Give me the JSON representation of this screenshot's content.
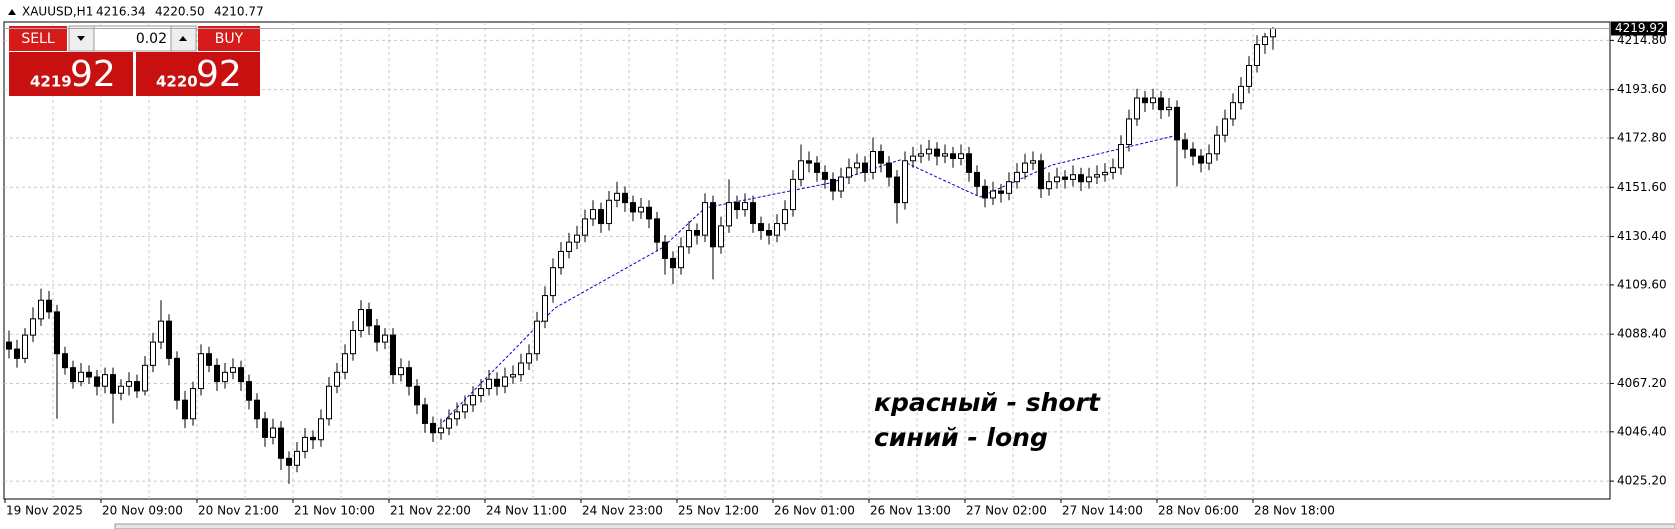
{
  "chart_data": {
    "type": "candlestick",
    "symbol": "XAUUSD,H1",
    "last_value_labels": [
      "4216.34",
      "4220.50",
      "4210.77",
      "4219.92"
    ],
    "trade_panel": {
      "sell": "SELL",
      "buy": "BUY",
      "lot": "0.02",
      "bid_main": "4219",
      "bid_frac": "92",
      "ask_main": "4220",
      "ask_frac": "92"
    },
    "annotations": [
      "красный - short",
      "синий - long"
    ],
    "categories": [
      "19 Nov 2025",
      null,
      null,
      null,
      null,
      null,
      null,
      null,
      null,
      null,
      null,
      null,
      "20 Nov 09:00",
      null,
      null,
      null,
      null,
      null,
      null,
      null,
      null,
      null,
      null,
      null,
      "20 Nov 21:00",
      null,
      null,
      null,
      null,
      null,
      null,
      null,
      null,
      null,
      null,
      null,
      "21 Nov 10:00",
      null,
      null,
      null,
      null,
      null,
      null,
      null,
      null,
      null,
      null,
      null,
      "21 Nov 22:00",
      null,
      null,
      null,
      null,
      null,
      null,
      null,
      null,
      null,
      null,
      null,
      "24 Nov 11:00",
      null,
      null,
      null,
      null,
      null,
      null,
      null,
      null,
      null,
      null,
      null,
      "24 Nov 23:00",
      null,
      null,
      null,
      null,
      null,
      null,
      null,
      null,
      null,
      null,
      null,
      "25 Nov 12:00",
      null,
      null,
      null,
      null,
      null,
      null,
      null,
      null,
      null,
      null,
      null,
      "26 Nov 01:00",
      null,
      null,
      null,
      null,
      null,
      null,
      null,
      null,
      null,
      null,
      null,
      "26 Nov 13:00",
      null,
      null,
      null,
      null,
      null,
      null,
      null,
      null,
      null,
      null,
      null,
      "27 Nov 02:00",
      null,
      null,
      null,
      null,
      null,
      null,
      null,
      null,
      null,
      null,
      null,
      "27 Nov 14:00",
      null,
      null,
      null,
      null,
      null,
      null,
      null,
      null,
      null,
      null,
      null,
      "28 Nov 06:00",
      null,
      null,
      null,
      null,
      null,
      null,
      null,
      null,
      null,
      null,
      null,
      "28 Nov 18:00",
      null,
      null
    ],
    "ohlc": [
      [
        4085,
        4090,
        4078,
        4082
      ],
      [
        4082,
        4086,
        4074,
        4078
      ],
      [
        4078,
        4091,
        4076,
        4088
      ],
      [
        4088,
        4100,
        4085,
        4095
      ],
      [
        4095,
        4108,
        4092,
        4103
      ],
      [
        4103,
        4107,
        4095,
        4098
      ],
      [
        4098,
        4101,
        4052,
        4080
      ],
      [
        4080,
        4083,
        4071,
        4074
      ],
      [
        4074,
        4077,
        4065,
        4068
      ],
      [
        4068,
        4076,
        4066,
        4072
      ],
      [
        4072,
        4075,
        4067,
        4070
      ],
      [
        4070,
        4073,
        4062,
        4066
      ],
      [
        4066,
        4074,
        4063,
        4071
      ],
      [
        4071,
        4074,
        4050,
        4063
      ],
      [
        4063,
        4069,
        4060,
        4066
      ],
      [
        4066,
        4072,
        4062,
        4068
      ],
      [
        4068,
        4071,
        4061,
        4064
      ],
      [
        4064,
        4079,
        4062,
        4075
      ],
      [
        4075,
        4089,
        4072,
        4085
      ],
      [
        4085,
        4103,
        4082,
        4094
      ],
      [
        4094,
        4097,
        4075,
        4078
      ],
      [
        4078,
        4081,
        4056,
        4060
      ],
      [
        4060,
        4064,
        4048,
        4052
      ],
      [
        4052,
        4068,
        4049,
        4065
      ],
      [
        4065,
        4084,
        4062,
        4080
      ],
      [
        4080,
        4083,
        4072,
        4075
      ],
      [
        4075,
        4078,
        4064,
        4068
      ],
      [
        4068,
        4076,
        4065,
        4072
      ],
      [
        4072,
        4078,
        4069,
        4074
      ],
      [
        4074,
        4077,
        4064,
        4068
      ],
      [
        4068,
        4071,
        4056,
        4060
      ],
      [
        4060,
        4063,
        4048,
        4052
      ],
      [
        4052,
        4055,
        4040,
        4044
      ],
      [
        4044,
        4052,
        4041,
        4048
      ],
      [
        4048,
        4051,
        4030,
        4035
      ],
      [
        4035,
        4038,
        4024,
        4032
      ],
      [
        4032,
        4042,
        4029,
        4038
      ],
      [
        4038,
        4048,
        4035,
        4044
      ],
      [
        4044,
        4047,
        4039,
        4043
      ],
      [
        4043,
        4056,
        4040,
        4052
      ],
      [
        4052,
        4070,
        4049,
        4066
      ],
      [
        4066,
        4076,
        4063,
        4072
      ],
      [
        4072,
        4084,
        4069,
        4080
      ],
      [
        4080,
        4094,
        4077,
        4090
      ],
      [
        4090,
        4103,
        4087,
        4099
      ],
      [
        4099,
        4102,
        4088,
        4092
      ],
      [
        4092,
        4095,
        4081,
        4085
      ],
      [
        4085,
        4091,
        4082,
        4088
      ],
      [
        4088,
        4091,
        4067,
        4071
      ],
      [
        4071,
        4078,
        4068,
        4074
      ],
      [
        4074,
        4077,
        4062,
        4066
      ],
      [
        4066,
        4069,
        4054,
        4058
      ],
      [
        4058,
        4061,
        4046,
        4050
      ],
      [
        4050,
        4053,
        4042,
        4046
      ],
      [
        4046,
        4052,
        4043,
        4048
      ],
      [
        4048,
        4056,
        4045,
        4052
      ],
      [
        4052,
        4059,
        4049,
        4055
      ],
      [
        4055,
        4062,
        4052,
        4058
      ],
      [
        4058,
        4066,
        4055,
        4062
      ],
      [
        4062,
        4069,
        4059,
        4065
      ],
      [
        4065,
        4073,
        4062,
        4069
      ],
      [
        4069,
        4072,
        4062,
        4066
      ],
      [
        4066,
        4074,
        4063,
        4070
      ],
      [
        4070,
        4075,
        4067,
        4071
      ],
      [
        4071,
        4080,
        4068,
        4076
      ],
      [
        4076,
        4084,
        4073,
        4080
      ],
      [
        4080,
        4098,
        4077,
        4094
      ],
      [
        4094,
        4109,
        4091,
        4105
      ],
      [
        4105,
        4121,
        4102,
        4117
      ],
      [
        4117,
        4128,
        4114,
        4124
      ],
      [
        4124,
        4132,
        4121,
        4128
      ],
      [
        4128,
        4135,
        4125,
        4131
      ],
      [
        4131,
        4142,
        4128,
        4138
      ],
      [
        4138,
        4146,
        4135,
        4142
      ],
      [
        4142,
        4145,
        4132,
        4136
      ],
      [
        4136,
        4150,
        4133,
        4146
      ],
      [
        4146,
        4154,
        4143,
        4149
      ],
      [
        4149,
        4152,
        4141,
        4145
      ],
      [
        4145,
        4148,
        4137,
        4141
      ],
      [
        4141,
        4147,
        4138,
        4143
      ],
      [
        4143,
        4146,
        4134,
        4138
      ],
      [
        4138,
        4141,
        4124,
        4128
      ],
      [
        4128,
        4131,
        4114,
        4121
      ],
      [
        4121,
        4124,
        4110,
        4117
      ],
      [
        4117,
        4130,
        4114,
        4126
      ],
      [
        4126,
        4137,
        4123,
        4133
      ],
      [
        4133,
        4136,
        4127,
        4131
      ],
      [
        4131,
        4149,
        4128,
        4145
      ],
      [
        4145,
        4148,
        4112,
        4126
      ],
      [
        4126,
        4139,
        4123,
        4135
      ],
      [
        4135,
        4155,
        4132,
        4145
      ],
      [
        4145,
        4148,
        4138,
        4142
      ],
      [
        4142,
        4149,
        4139,
        4145
      ],
      [
        4145,
        4148,
        4132,
        4136
      ],
      [
        4136,
        4139,
        4129,
        4133
      ],
      [
        4133,
        4136,
        4127,
        4131
      ],
      [
        4131,
        4140,
        4128,
        4136
      ],
      [
        4136,
        4146,
        4133,
        4142
      ],
      [
        4142,
        4159,
        4139,
        4155
      ],
      [
        4155,
        4170,
        4152,
        4163
      ],
      [
        4163,
        4167,
        4158,
        4162
      ],
      [
        4162,
        4165,
        4154,
        4158
      ],
      [
        4158,
        4161,
        4151,
        4155
      ],
      [
        4155,
        4158,
        4146,
        4150
      ],
      [
        4150,
        4160,
        4147,
        4156
      ],
      [
        4156,
        4164,
        4153,
        4160
      ],
      [
        4160,
        4166,
        4157,
        4162
      ],
      [
        4162,
        4165,
        4154,
        4158
      ],
      [
        4158,
        4173,
        4155,
        4167
      ],
      [
        4167,
        4170,
        4158,
        4162
      ],
      [
        4162,
        4165,
        4152,
        4156
      ],
      [
        4156,
        4159,
        4136,
        4145
      ],
      [
        4145,
        4167,
        4142,
        4163
      ],
      [
        4163,
        4169,
        4160,
        4165
      ],
      [
        4165,
        4170,
        4162,
        4166
      ],
      [
        4166,
        4172,
        4163,
        4168
      ],
      [
        4168,
        4171,
        4161,
        4165
      ],
      [
        4165,
        4170,
        4162,
        4166
      ],
      [
        4166,
        4169,
        4160,
        4164
      ],
      [
        4164,
        4170,
        4161,
        4166
      ],
      [
        4166,
        4169,
        4154,
        4158
      ],
      [
        4158,
        4161,
        4148,
        4152
      ],
      [
        4152,
        4155,
        4143,
        4147
      ],
      [
        4147,
        4154,
        4144,
        4150
      ],
      [
        4150,
        4153,
        4145,
        4149
      ],
      [
        4149,
        4158,
        4146,
        4154
      ],
      [
        4154,
        4162,
        4151,
        4158
      ],
      [
        4158,
        4166,
        4155,
        4162
      ],
      [
        4162,
        4167,
        4159,
        4163
      ],
      [
        4163,
        4166,
        4147,
        4151
      ],
      [
        4151,
        4158,
        4148,
        4154
      ],
      [
        4154,
        4160,
        4151,
        4156
      ],
      [
        4156,
        4159,
        4151,
        4155
      ],
      [
        4155,
        4161,
        4152,
        4157
      ],
      [
        4157,
        4160,
        4150,
        4154
      ],
      [
        4154,
        4160,
        4151,
        4156
      ],
      [
        4156,
        4161,
        4153,
        4157
      ],
      [
        4157,
        4162,
        4154,
        4158
      ],
      [
        4158,
        4164,
        4155,
        4160
      ],
      [
        4160,
        4174,
        4157,
        4170
      ],
      [
        4170,
        4185,
        4167,
        4181
      ],
      [
        4181,
        4194,
        4178,
        4190
      ],
      [
        4190,
        4193,
        4184,
        4188
      ],
      [
        4188,
        4194,
        4185,
        4190
      ],
      [
        4190,
        4193,
        4181,
        4185
      ],
      [
        4185,
        4190,
        4182,
        4186
      ],
      [
        4186,
        4189,
        4152,
        4172
      ],
      [
        4172,
        4175,
        4164,
        4168
      ],
      [
        4168,
        4171,
        4161,
        4165
      ],
      [
        4165,
        4168,
        4158,
        4162
      ],
      [
        4162,
        4170,
        4159,
        4166
      ],
      [
        4166,
        4178,
        4163,
        4174
      ],
      [
        4174,
        4185,
        4171,
        4181
      ],
      [
        4181,
        4192,
        4178,
        4188
      ],
      [
        4188,
        4199,
        4185,
        4195
      ],
      [
        4195,
        4208,
        4192,
        4204
      ],
      [
        4204,
        4217,
        4201,
        4213
      ],
      [
        4213,
        4218,
        4209,
        4216.34
      ],
      [
        4216.34,
        4220.5,
        4210.77,
        4219.92
      ]
    ],
    "ylim": [
      4017.5,
      4222.7
    ],
    "yticks": [
      {
        "value": 4025.2,
        "label": "4025.20"
      },
      {
        "value": 4046.4,
        "label": "4046.40"
      },
      {
        "value": 4067.2,
        "label": "4067.20"
      },
      {
        "value": 4088.4,
        "label": "4088.40"
      },
      {
        "value": 4109.6,
        "label": "4109.60"
      },
      {
        "value": 4130.4,
        "label": "4130.40"
      },
      {
        "value": 4151.6,
        "label": "4151.60"
      },
      {
        "value": 4172.8,
        "label": "4172.80"
      },
      {
        "value": 4193.6,
        "label": "4193.60"
      },
      {
        "value": 4214.8,
        "label": "4214.80"
      }
    ],
    "grid": true,
    "up_color": "#ffffff",
    "down_color": "#000000"
  }
}
